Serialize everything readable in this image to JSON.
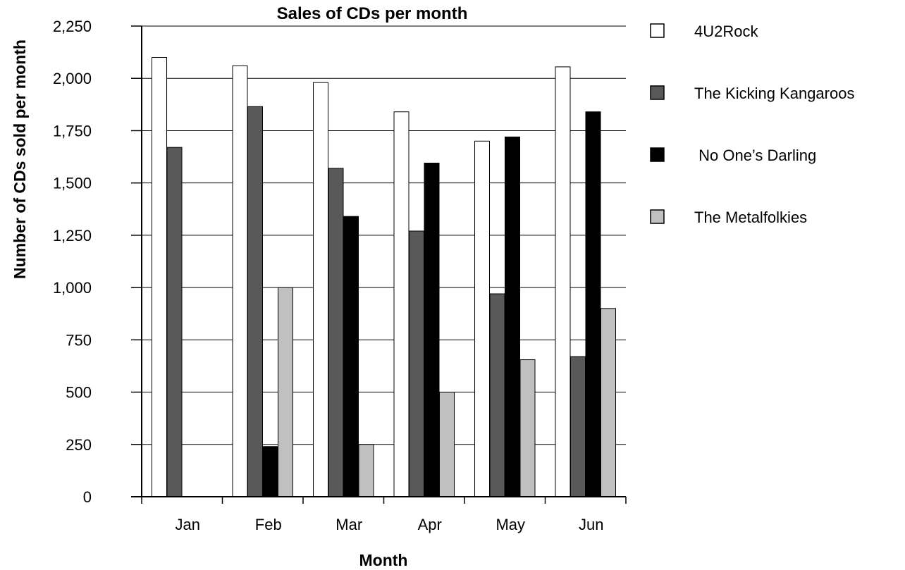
{
  "chart_data": {
    "type": "bar",
    "title": "Sales of CDs per month",
    "xlabel": "Month",
    "ylabel": "Number of CDs sold per month",
    "categories": [
      "Jan",
      "Feb",
      "Mar",
      "Apr",
      "May",
      "Jun"
    ],
    "ylim": [
      0,
      2250
    ],
    "yticks": [
      0,
      250,
      500,
      750,
      1000,
      1250,
      1500,
      1750,
      2000,
      2250
    ],
    "ytick_labels": [
      "0",
      "250",
      "500",
      "750",
      "1,000",
      "1,250",
      "1,500",
      "1,750",
      "2,000",
      "2,250"
    ],
    "grid": true,
    "legend_position": "right",
    "series": [
      {
        "name": "4U2Rock",
        "color": "#ffffff",
        "values": [
          2100,
          2060,
          1980,
          1840,
          1700,
          2055
        ]
      },
      {
        "name": "The Kicking Kangaroos",
        "color": "#595959",
        "values": [
          1670,
          1865,
          1570,
          1270,
          970,
          670
        ]
      },
      {
        "name": " No One’s Darling",
        "color": "#000000",
        "values": [
          0,
          240,
          1340,
          1595,
          1720,
          1840
        ]
      },
      {
        "name": "The Metalfolkies",
        "color": "#c0c0c0",
        "values": [
          0,
          1000,
          250,
          500,
          655,
          900
        ]
      }
    ]
  }
}
